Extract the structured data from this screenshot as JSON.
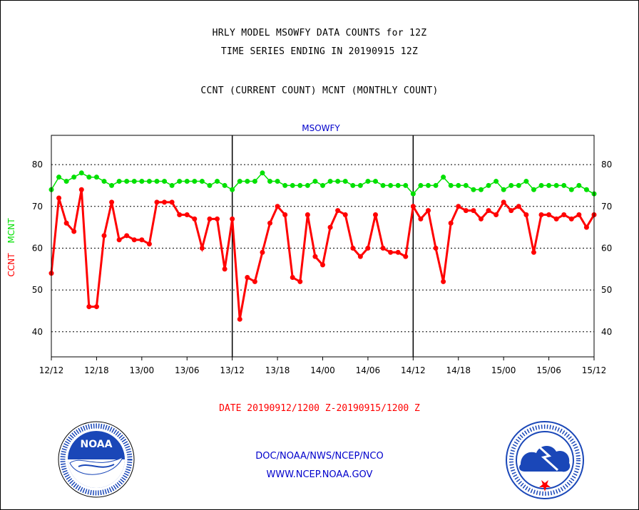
{
  "header": {
    "line1": "HRLY MODEL MSOWFY DATA COUNTS for 12Z",
    "line2": "TIME SERIES ENDING IN 20190915 12Z",
    "line3": "CCNT (CURRENT COUNT) MCNT (MONTHLY COUNT)"
  },
  "footer": {
    "date_range": "DATE 20190912/1200 Z-20190915/1200 Z",
    "org": "DOC/NOAA/NWS/NCEP/NCO",
    "url": "WWW.NCEP.NOAA.GOV"
  },
  "logos": {
    "left": "NOAA",
    "right": "NATIONAL WEATHER SERVICE"
  },
  "colors": {
    "ccnt": "#ff0000",
    "mcnt": "#00e000",
    "title_blue": "#0000cc",
    "grid": "#000000"
  },
  "chart_data": {
    "type": "line",
    "title": "MSOWFY",
    "ylabel_ccnt": "CCNT",
    "ylabel_mcnt": "MCNT",
    "ylim": [
      34,
      87
    ],
    "yticks": [
      40,
      50,
      60,
      70,
      80
    ],
    "xlim": [
      0,
      72
    ],
    "xtick_positions": [
      0,
      6,
      12,
      18,
      24,
      30,
      36,
      42,
      48,
      54,
      60,
      66,
      72
    ],
    "xtick_labels": [
      "12/12",
      "12/18",
      "13/00",
      "13/06",
      "13/12",
      "13/18",
      "14/00",
      "14/06",
      "14/12",
      "14/18",
      "15/00",
      "15/06",
      "15/12"
    ],
    "day_separators": [
      24,
      48
    ],
    "grid": "horizontal dotted",
    "series": [
      {
        "name": "CCNT",
        "color": "#ff0000",
        "values": [
          54,
          72,
          66,
          64,
          74,
          46,
          46,
          63,
          71,
          62,
          63,
          62,
          62,
          61,
          71,
          71,
          71,
          68,
          68,
          67,
          60,
          67,
          67,
          55,
          67,
          43,
          53,
          52,
          59,
          66,
          70,
          68,
          53,
          52,
          68,
          58,
          56,
          65,
          69,
          68,
          60,
          58,
          60,
          68,
          60,
          59,
          59,
          58,
          70,
          67,
          69,
          60,
          52,
          66,
          70,
          69,
          69,
          67,
          69,
          68,
          71,
          69,
          70,
          68,
          59,
          68,
          68,
          67,
          68,
          67,
          68,
          65,
          68
        ]
      },
      {
        "name": "MCNT",
        "color": "#00e000",
        "values": [
          74,
          77,
          76,
          77,
          78,
          77,
          77,
          76,
          75,
          76,
          76,
          76,
          76,
          76,
          76,
          76,
          75,
          76,
          76,
          76,
          76,
          75,
          76,
          75,
          74,
          76,
          76,
          76,
          78,
          76,
          76,
          75,
          75,
          75,
          75,
          76,
          75,
          76,
          76,
          76,
          75,
          75,
          76,
          76,
          75,
          75,
          75,
          75,
          73,
          75,
          75,
          75,
          77,
          75,
          75,
          75,
          74,
          74,
          75,
          76,
          74,
          75,
          75,
          76,
          74,
          75,
          75,
          75,
          75,
          74,
          75,
          74,
          73
        ]
      }
    ]
  }
}
